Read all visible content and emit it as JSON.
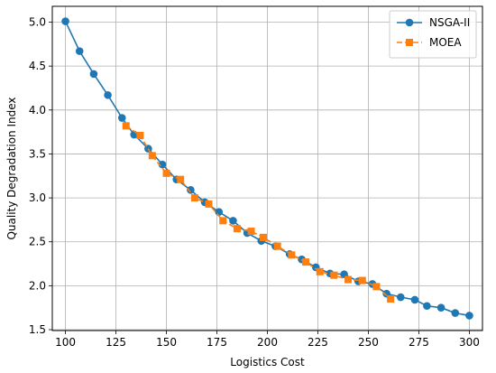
{
  "chart_data": {
    "type": "line",
    "title": "",
    "xlabel": "Logistics Cost",
    "ylabel": "Quality Degradation Index",
    "xlim": [
      93.5,
      306.5
    ],
    "ylim": [
      1.49,
      5.18
    ],
    "xticks": [
      100,
      125,
      150,
      175,
      200,
      225,
      250,
      275,
      300
    ],
    "yticks": [
      1.5,
      2.0,
      2.5,
      3.0,
      3.5,
      4.0,
      4.5,
      5.0
    ],
    "xtick_labels": [
      "100",
      "125",
      "150",
      "175",
      "200",
      "225",
      "250",
      "275",
      "300"
    ],
    "ytick_labels": [
      "1.5",
      "2.0",
      "2.5",
      "3.0",
      "3.5",
      "4.0",
      "4.5",
      "5.0"
    ],
    "grid": true,
    "legend_position": "top-right",
    "series": [
      {
        "name": "NSGA-II",
        "color": "#1f77b4",
        "marker": "circle",
        "line_style": "solid",
        "x": [
          100,
          107,
          114,
          121,
          128,
          134,
          141,
          148,
          155,
          162,
          169,
          176,
          183,
          190,
          197,
          204,
          211,
          217,
          224,
          231,
          238,
          245,
          252,
          259,
          266,
          273,
          279,
          286,
          293,
          300
        ],
        "y": [
          5.01,
          4.67,
          4.41,
          4.17,
          3.91,
          3.72,
          3.56,
          3.38,
          3.21,
          3.09,
          2.95,
          2.84,
          2.74,
          2.6,
          2.51,
          2.45,
          2.36,
          2.3,
          2.21,
          2.14,
          2.13,
          2.05,
          2.02,
          1.91,
          1.87,
          1.84,
          1.77,
          1.75,
          1.69,
          1.66
        ]
      },
      {
        "name": "MOEA",
        "color": "#ff7f0e",
        "marker": "square",
        "line_style": "dashed",
        "x": [
          130,
          137,
          143,
          150,
          157,
          164,
          171,
          178,
          185,
          192,
          198,
          205,
          212,
          219,
          226,
          233,
          240,
          247,
          254,
          261
        ],
        "y": [
          3.82,
          3.71,
          3.48,
          3.28,
          3.21,
          3.0,
          2.93,
          2.74,
          2.65,
          2.62,
          2.55,
          2.45,
          2.35,
          2.27,
          2.16,
          2.12,
          2.07,
          2.06,
          1.99,
          1.85
        ]
      }
    ]
  }
}
